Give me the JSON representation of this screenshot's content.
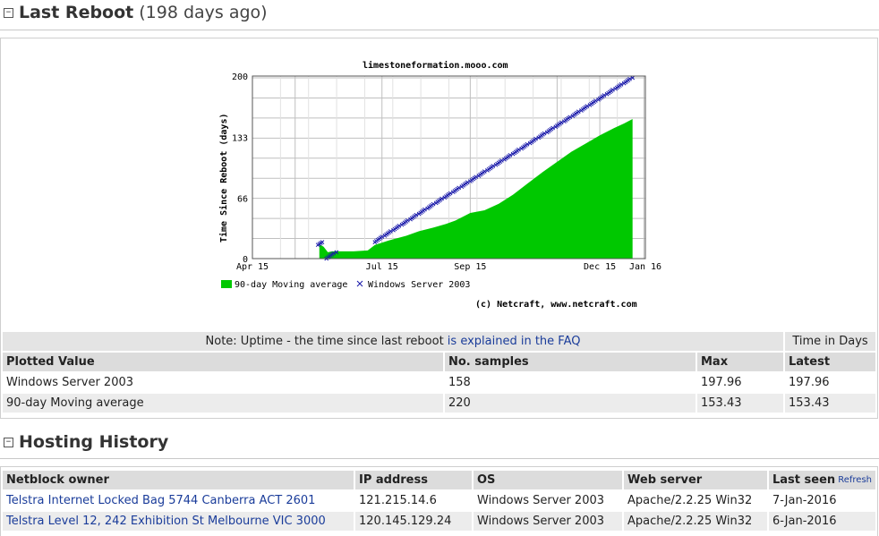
{
  "reboot_section": {
    "title": "Last Reboot",
    "subtitle": "(198 days ago)"
  },
  "chart": {
    "title": "limestoneformation.mooo.com",
    "ylabel": "Time Since Reboot (days)",
    "copyright": "(c) Netcraft, www.netcraft.com",
    "legend": [
      "90-day Moving average",
      "Windows Server 2003"
    ],
    "colors": {
      "average_fill": "#00c800",
      "marker": "#1a1aaa"
    }
  },
  "chart_data": {
    "type": "area",
    "x_ticks": [
      "Apr 15",
      "Jul 15",
      "Sep 15",
      "Dec 15",
      "Jan 16"
    ],
    "y_ticks": [
      0,
      66,
      133,
      200
    ],
    "ylim": [
      0,
      200
    ],
    "xlabel": "",
    "ylabel": "Time Since Reboot (days)",
    "grid": true,
    "legend_position": "bottom",
    "series": [
      {
        "name": "90-day Moving average",
        "kind": "area",
        "x": [
          "2015-06-01",
          "2015-06-04",
          "2015-06-07",
          "2015-06-10",
          "2015-06-15",
          "2015-06-25",
          "2015-07-05",
          "2015-07-10",
          "2015-07-20",
          "2015-08-01",
          "2015-08-10",
          "2015-08-20",
          "2015-08-29",
          "2015-09-05",
          "2015-09-15",
          "2015-09-25",
          "2015-10-05",
          "2015-10-15",
          "2015-10-25",
          "2015-11-05",
          "2015-11-15",
          "2015-11-25",
          "2015-12-05",
          "2015-12-15",
          "2015-12-25",
          "2016-01-01",
          "2016-01-07"
        ],
        "values": [
          16,
          13,
          7,
          8,
          8,
          8,
          9,
          15,
          20,
          25,
          30,
          34,
          38,
          42,
          50,
          53,
          60,
          70,
          82,
          95,
          106,
          117,
          126,
          135,
          143,
          148,
          153
        ]
      },
      {
        "name": "Windows Server 2003",
        "kind": "scatter",
        "segments": [
          {
            "x": [
              "2015-05-31",
              "2015-06-03"
            ],
            "values": [
              15,
              18
            ]
          },
          {
            "x": [
              "2015-06-06",
              "2015-06-13"
            ],
            "values": [
              0,
              7
            ]
          },
          {
            "x": [
              "2015-07-10",
              "2016-01-07"
            ],
            "values": [
              18,
              198
            ]
          }
        ]
      }
    ]
  },
  "stats_table": {
    "note_prefix": "Note: Uptime - the time since last reboot ",
    "note_link": "is explained in the FAQ",
    "time_header": "Time in Days",
    "headers": [
      "Plotted Value",
      "No. samples",
      "Max",
      "Latest"
    ],
    "rows": [
      [
        "Windows Server 2003",
        "158",
        "197.96",
        "197.96"
      ],
      [
        "90-day Moving average",
        "220",
        "153.43",
        "153.43"
      ]
    ]
  },
  "hosting_section": {
    "title": "Hosting History"
  },
  "hosting_table": {
    "headers": [
      "Netblock owner",
      "IP address",
      "OS",
      "Web server",
      "Last seen"
    ],
    "refresh_label": "Refresh",
    "rows": [
      [
        "Telstra Internet Locked Bag 5744 Canberra ACT 2601",
        "121.215.14.6",
        "Windows Server 2003",
        "Apache/2.2.25 Win32",
        "7-Jan-2016"
      ],
      [
        "Telstra Level 12, 242 Exhibition St Melbourne VIC 3000",
        "120.145.129.24",
        "Windows Server 2003",
        "Apache/2.2.25 Win32",
        "6-Jan-2016"
      ]
    ]
  }
}
